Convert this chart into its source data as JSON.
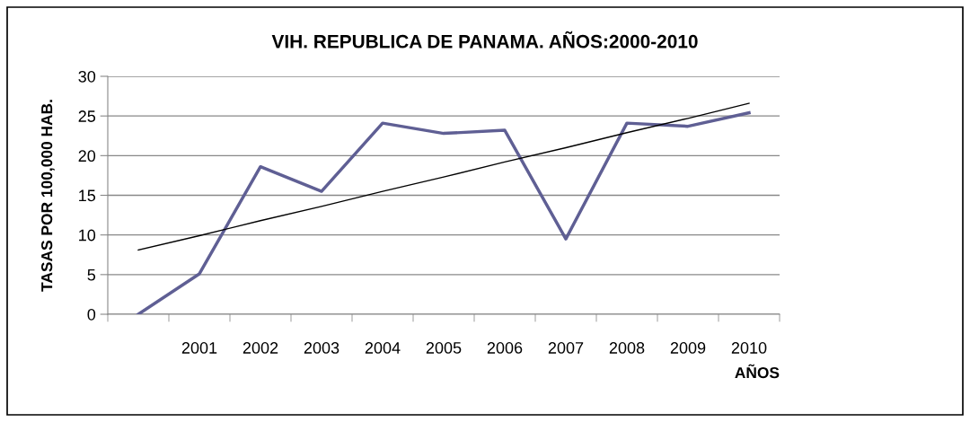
{
  "chart_data": {
    "type": "line",
    "title": "VIH. REPUBLICA DE PANAMA. AÑOS:2000-2010",
    "xlabel": "AÑOS",
    "ylabel": "TASAS POR 100,000 HAB.",
    "categories": [
      null,
      "2001",
      "2002",
      "2003",
      "2004",
      "2005",
      "2006",
      "2007",
      "2008",
      "2009",
      "2010"
    ],
    "series": [
      {
        "color": "#5f5f94",
        "values": [
          0,
          5.1,
          18.6,
          15.5,
          24.1,
          22.8,
          23.2,
          9.5,
          24.1,
          23.7,
          25.4
        ]
      },
      {
        "type": "line",
        "color": "#000000",
        "values": [
          8.1,
          9.9,
          11.8,
          13.6,
          15.5,
          17.3,
          19.2,
          21.0,
          22.9,
          24.7,
          26.6
        ]
      }
    ],
    "ylim": [
      0,
      30
    ],
    "yticks": [
      0,
      5,
      10,
      15,
      20,
      25,
      30
    ],
    "grid": "y",
    "marker": "none",
    "line_style": "solid"
  }
}
